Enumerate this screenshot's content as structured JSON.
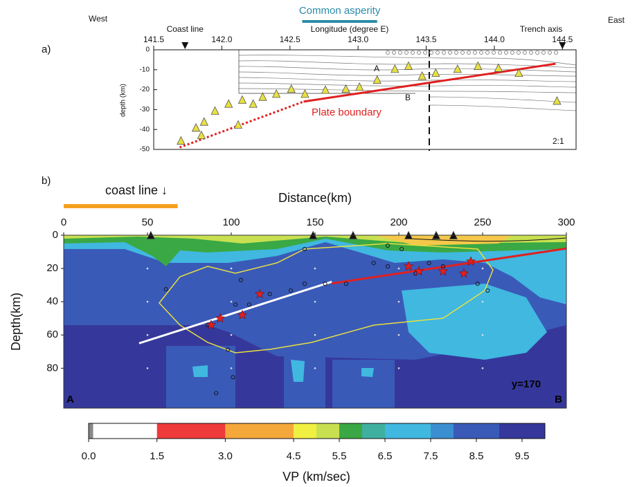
{
  "chart_data": [
    {
      "type": "scatter",
      "panel_label": "a)",
      "title": "Common asperity",
      "west_label": "West",
      "east_label": "East",
      "xlabel": "Longitude (degree E)",
      "ylabel": "depth (km)",
      "xlim": [
        141.5,
        144.6
      ],
      "ylim": [
        -50,
        0
      ],
      "xticks": [
        141.5,
        {
          "value": 142,
          "label": "142.0"
        },
        142.5,
        {
          "value": 143,
          "label": "143.0"
        },
        143.5,
        {
          "value": 144,
          "label": "144.0"
        },
        144.5
      ],
      "yticks": [
        0,
        -10,
        -20,
        -30,
        -40,
        -50
      ],
      "asperity": [
        142.59,
        143.14
      ],
      "asperity_color": "#2a8aa8",
      "markers": [
        {
          "label": "Coast line",
          "x": 141.73
        },
        {
          "label": "Trench axis",
          "x": 144.5
        }
      ],
      "annotations": [
        "A",
        "B",
        "Plate boundary",
        "2:1"
      ],
      "series": [
        {
          "kind": "line",
          "style": "dotted",
          "color": "#e02020",
          "x": [
            141.69,
            142.6
          ],
          "y": [
            -49,
            -26
          ]
        },
        {
          "kind": "line",
          "style": "solid",
          "color": "#e02020",
          "x": [
            142.6,
            144.45
          ],
          "y": [
            -26,
            -7
          ]
        },
        {
          "kind": "triangle",
          "color": "#e8e040",
          "x": [
            141.7,
            141.81,
            141.87,
            141.95,
            142.05,
            142.15,
            142.23,
            142.3,
            142.4,
            142.51,
            142.61,
            142.76,
            142.91,
            143.01,
            143.14,
            143.27,
            143.37,
            143.47,
            143.57,
            143.73,
            143.88,
            144.03,
            144.18,
            144.46,
            142.12,
            141.85
          ],
          "y": [
            -45.5,
            -39,
            -36,
            -30.5,
            -27,
            -25,
            -27,
            -23.5,
            -22,
            -19.5,
            -22,
            -20,
            -19.5,
            -18.5,
            -15,
            -9.5,
            -8,
            -13,
            -11.5,
            -9.5,
            -8,
            -9,
            -11.5,
            -25.5,
            -37.5,
            -42.7
          ]
        }
      ]
    },
    {
      "type": "scatter",
      "panel_label": "b)",
      "xlabel": "Distance(km)",
      "ylabel": "Depth(km)",
      "xlim": [
        0,
        300
      ],
      "ylim": [
        0,
        104
      ],
      "y_inverted": true,
      "xticks": [
        0,
        50,
        100,
        150,
        200,
        250,
        300
      ],
      "yticks": [
        0,
        20,
        40,
        60,
        80
      ],
      "grid": true,
      "coast_line": {
        "label": "coast line ↓",
        "x": [
          0,
          68
        ],
        "color": "#f5a020"
      },
      "annotations": [
        "A",
        "B",
        "y=170"
      ],
      "series": [
        {
          "kind": "line",
          "color": "#ffffff",
          "x": [
            45,
            160
          ],
          "y": [
            65,
            28
          ]
        },
        {
          "kind": "line",
          "color": "#e02020",
          "x": [
            160,
            300
          ],
          "y": [
            29,
            8
          ]
        },
        {
          "kind": "circle",
          "color": "#111111",
          "x": [
            61,
            86,
            102.5,
            110.7,
            123,
            135.5,
            143.8,
            156,
            168.6,
            185,
            193.4,
            201.7,
            210,
            218,
            226.4,
            243,
            247,
            253,
            98,
            101,
            91,
            105.8,
            143.8,
            193.4
          ],
          "y": [
            32.5,
            54,
            41.7,
            41.7,
            35.4,
            33.3,
            29.2,
            29.2,
            29.2,
            16.7,
            18.75,
            8.3,
            23,
            16.7,
            18.75,
            15.8,
            29.2,
            33.3,
            68.8,
            85.4,
            95,
            27,
            8.3,
            6.25
          ]
        },
        {
          "kind": "star",
          "color": "#e02020",
          "x": [
            88,
            93.4,
            106.6,
            117,
            205.8,
            212,
            226.4,
            238.8,
            243
          ],
          "y": [
            54,
            50,
            48,
            35.4,
            18.75,
            21.7,
            21.7,
            23,
            15.8
          ]
        },
        {
          "kind": "triangle",
          "color": "#111111",
          "x": [
            52,
            148.8,
            172.7,
            205.8,
            222.3,
            232.6
          ],
          "y": [
            0,
            0,
            0,
            0,
            0,
            0
          ]
        }
      ]
    },
    {
      "type": "colorbar",
      "xlabel": "VP (km/sec)",
      "ticks": [
        {
          "value": 0,
          "label": "0.0"
        },
        1.5,
        {
          "value": 3,
          "label": "3.0"
        },
        4.5,
        5.5,
        6.5,
        7.5,
        8.5,
        9.5
      ],
      "segments": [
        {
          "from": 0,
          "to": 0.1,
          "color": "#888888"
        },
        {
          "from": 0.1,
          "to": 1.5,
          "color": "#ffffff"
        },
        {
          "from": 1.5,
          "to": 3,
          "color": "#ee3a3a"
        },
        {
          "from": 3,
          "to": 4.5,
          "color": "#f5a83a"
        },
        {
          "from": 4.5,
          "to": 5,
          "color": "#f0f040"
        },
        {
          "from": 5,
          "to": 5.5,
          "color": "#c8e050"
        },
        {
          "from": 5.5,
          "to": 6,
          "color": "#3aa845"
        },
        {
          "from": 6,
          "to": 6.5,
          "color": "#3fb0a0"
        },
        {
          "from": 6.5,
          "to": 7.5,
          "color": "#40b8e0"
        },
        {
          "from": 7.5,
          "to": 8,
          "color": "#3b8fd0"
        },
        {
          "from": 8,
          "to": 9,
          "color": "#3a5ab8"
        },
        {
          "from": 9,
          "to": 10,
          "color": "#35389a"
        }
      ]
    }
  ]
}
